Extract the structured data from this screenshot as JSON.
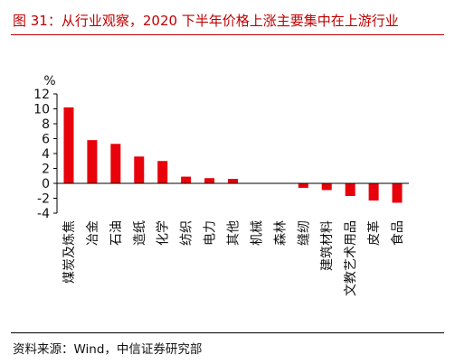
{
  "header": {
    "title": "图 31：从行业观察，2020 下半年价格上涨主要集中在上游行业"
  },
  "footer": {
    "source": "资料来源：Wind，中信证券研究部"
  },
  "colors": {
    "accent": "#c00000",
    "bar": "#e8000b"
  },
  "chart_data": {
    "type": "bar",
    "unit_label": "%",
    "categories": [
      "煤炭及炼焦",
      "冶金",
      "石油",
      "造纸",
      "化学",
      "纺织",
      "电力",
      "其他",
      "机械",
      "森林",
      "缝纫",
      "建筑材料",
      "文教艺术用品",
      "皮革",
      "食品"
    ],
    "values": [
      10.2,
      5.8,
      5.3,
      3.6,
      3.0,
      0.9,
      0.7,
      0.6,
      0.0,
      0.0,
      -0.6,
      -0.9,
      -1.7,
      -2.3,
      -2.6
    ],
    "ylim": [
      -4,
      12
    ],
    "yticks": [
      -4,
      -2,
      0,
      2,
      4,
      6,
      8,
      10,
      12
    ],
    "legend": "none",
    "grid": false
  }
}
